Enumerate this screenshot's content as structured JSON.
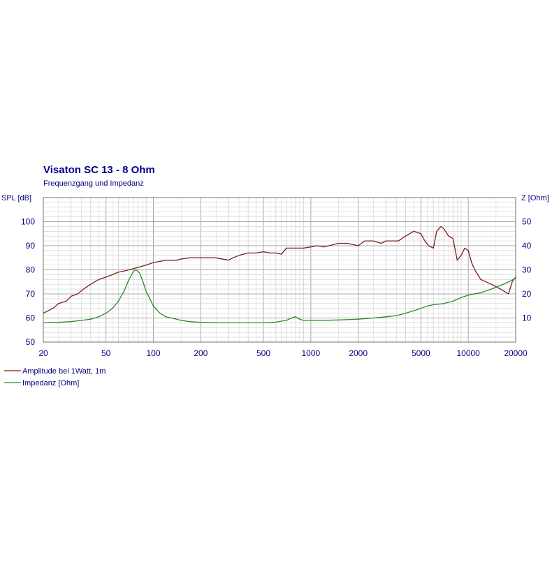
{
  "chart_data": {
    "type": "line",
    "title": "Visaton SC 13 - 8 Ohm",
    "subtitle": "Frequenzgang und Impedanz",
    "x_scale": "log",
    "xlim": [
      20,
      20000
    ],
    "x_ticks": [
      20,
      50,
      100,
      200,
      500,
      1000,
      2000,
      5000,
      10000,
      20000
    ],
    "x_tick_labels": [
      "20",
      "50",
      "100",
      "200",
      "500",
      "1000",
      "2000",
      "5000",
      "10000",
      "20000"
    ],
    "y_left": {
      "label": "SPL [dB]",
      "lim": [
        50,
        110
      ],
      "ticks": [
        50,
        60,
        70,
        80,
        90,
        100
      ],
      "tick_labels": [
        "50",
        "60",
        "70",
        "80",
        "90",
        "100"
      ]
    },
    "y_right": {
      "label": "Z [Ohm]",
      "lim": [
        0,
        60
      ],
      "ticks": [
        10,
        20,
        30,
        40,
        50
      ],
      "tick_labels": [
        "10",
        "20",
        "30",
        "40",
        "50"
      ]
    },
    "grid": true,
    "legend_position": "bottom-left",
    "colors": {
      "amplitude": "#7a1f1f",
      "impedance": "#2a8a2a",
      "grid": "#a8a8a8",
      "grid_minor": "#cfcfcf",
      "title": "#00008b",
      "subtitle": "#000080",
      "axis_text": "#000080"
    },
    "series": [
      {
        "name": "Amplitude bei 1Watt, 1m",
        "axis": "left",
        "x": [
          20,
          23,
          25,
          28,
          30,
          33,
          36,
          40,
          45,
          50,
          55,
          60,
          65,
          70,
          75,
          80,
          90,
          100,
          110,
          120,
          130,
          140,
          150,
          170,
          200,
          250,
          300,
          320,
          350,
          400,
          450,
          500,
          550,
          600,
          650,
          700,
          800,
          900,
          1000,
          1100,
          1200,
          1300,
          1500,
          1700,
          2000,
          2200,
          2500,
          2800,
          3000,
          3300,
          3600,
          4000,
          4500,
          5000,
          5300,
          5600,
          6000,
          6300,
          6700,
          7000,
          7500,
          8000,
          8500,
          9000,
          9500,
          10000,
          10500,
          11000,
          11500,
          12000,
          13000,
          14000,
          15000,
          16000,
          17000,
          18000,
          19000,
          20000
        ],
        "values": [
          62,
          64,
          66,
          67,
          69,
          70,
          72,
          74,
          76,
          77,
          78,
          79,
          79.5,
          80,
          80.5,
          81,
          82,
          83,
          83.5,
          84,
          84,
          84,
          84.5,
          85,
          85,
          85,
          84,
          85,
          86,
          87,
          87,
          87.5,
          87,
          87,
          86.5,
          89,
          89,
          89,
          89.5,
          90,
          89.5,
          90,
          91,
          91,
          90,
          92,
          92,
          91,
          92,
          92,
          92,
          94,
          96,
          95,
          92,
          90,
          89,
          96,
          98,
          97,
          94,
          93,
          84,
          86,
          89,
          88,
          83,
          80,
          78,
          76,
          75,
          74,
          73,
          72,
          71,
          70,
          75,
          77
        ]
      },
      {
        "name": "Impedanz [Ohm]",
        "axis": "right",
        "x": [
          20,
          25,
          30,
          35,
          40,
          45,
          50,
          55,
          60,
          65,
          70,
          75,
          78,
          82,
          86,
          90,
          95,
          100,
          110,
          120,
          130,
          150,
          170,
          200,
          250,
          300,
          400,
          500,
          600,
          700,
          750,
          800,
          850,
          900,
          1000,
          1200,
          1500,
          2000,
          2500,
          3000,
          3500,
          4000,
          4500,
          5000,
          5500,
          6000,
          7000,
          8000,
          9000,
          10000,
          12000,
          14000,
          16000,
          18000,
          20000
        ],
        "values": [
          8,
          8.2,
          8.5,
          9,
          9.5,
          10.5,
          12,
          14,
          17,
          21,
          26,
          29.5,
          30,
          28.5,
          25,
          21,
          18,
          15,
          12,
          10.5,
          10,
          9,
          8.5,
          8.2,
          8,
          8,
          8,
          8,
          8.3,
          9,
          10,
          10.5,
          9.5,
          9,
          9,
          9,
          9.2,
          9.5,
          10,
          10.5,
          11,
          12,
          13,
          14,
          15,
          15.5,
          16,
          17,
          18.5,
          19.5,
          20.5,
          22,
          23.5,
          25,
          26.5
        ]
      }
    ]
  }
}
